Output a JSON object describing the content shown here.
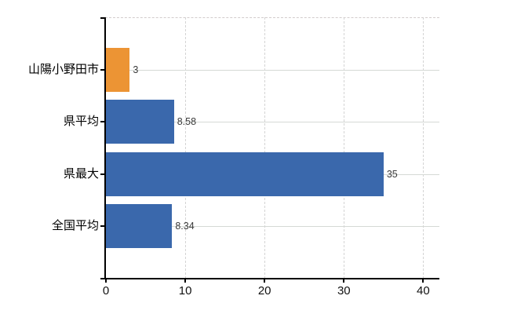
{
  "chart_data": {
    "type": "bar",
    "orientation": "horizontal",
    "categories": [
      "山陽小野田市",
      "県平均",
      "県最大",
      "全国平均"
    ],
    "values": [
      3,
      8.58,
      35,
      8.34
    ],
    "value_labels": [
      "3",
      "8.58",
      "35",
      "8.34"
    ],
    "series": [
      {
        "name": "value",
        "values": [
          3,
          8.58,
          35,
          8.34
        ]
      }
    ],
    "bar_colors": [
      "#ec9434",
      "#3a68ac",
      "#3a68ac",
      "#3a68ac"
    ],
    "xlim": [
      0,
      42
    ],
    "x_ticks": [
      0,
      10,
      20,
      30,
      40
    ],
    "x_tick_labels": [
      "0",
      "10",
      "20",
      "30",
      "40"
    ],
    "grid": true,
    "legend": "none",
    "colors": {
      "highlight_bar": "#ec9434",
      "default_bar": "#3a68ac",
      "gridline": "#d4d4d4",
      "axis": "#000000",
      "background": "#ffffff"
    }
  }
}
